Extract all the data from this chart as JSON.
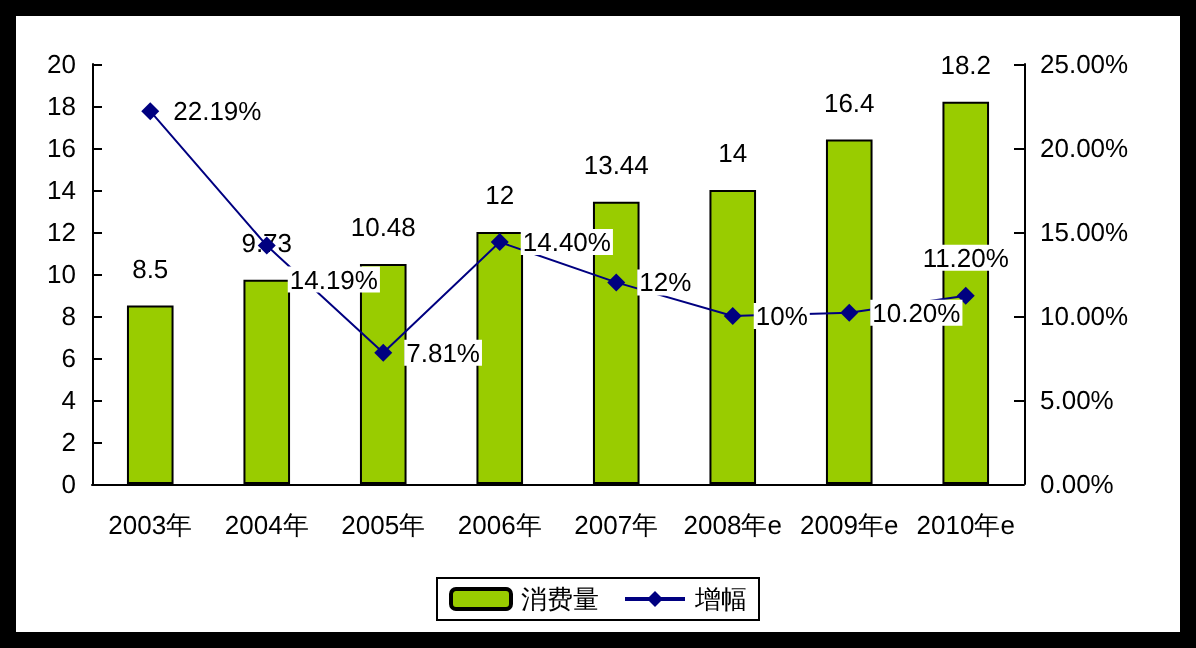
{
  "chart_data": {
    "type": "bar",
    "categories": [
      "2003年",
      "2004年",
      "2005年",
      "2006年",
      "2007年",
      "2008年e",
      "2009年e",
      "2010年e"
    ],
    "series": [
      {
        "name": "消费量",
        "type": "bar",
        "color": "#99cc00",
        "values": [
          8.5,
          9.73,
          10.48,
          12,
          13.44,
          14,
          16.4,
          18.2
        ],
        "value_labels": [
          "8.5",
          "9.73",
          "10.48",
          "12",
          "13.44",
          "14",
          "16.4",
          "18.2"
        ]
      },
      {
        "name": "增幅",
        "type": "line",
        "axis": "y2",
        "color": "#000080",
        "marker": "diamond",
        "values": [
          22.19,
          14.19,
          7.81,
          14.4,
          12,
          10,
          10.2,
          11.2
        ],
        "value_labels": [
          "22.19%",
          "14.19%",
          "7.81%",
          "14.40%",
          "12%",
          "10%",
          "10.20%",
          "11.20%"
        ]
      }
    ],
    "ylim": [
      0,
      20
    ],
    "yticks": [
      0,
      2,
      4,
      6,
      8,
      10,
      12,
      14,
      16,
      18,
      20
    ],
    "y2lim": [
      0,
      25
    ],
    "y2ticks": [
      {
        "value": 0,
        "label": "0.00%"
      },
      {
        "value": 5,
        "label": "5.00%"
      },
      {
        "value": 10,
        "label": "10.00%"
      },
      {
        "value": 15,
        "label": "15.00%"
      },
      {
        "value": 20,
        "label": "20.00%"
      },
      {
        "value": 25,
        "label": "25.00%"
      }
    ],
    "grid": false,
    "legend": "bottom"
  }
}
